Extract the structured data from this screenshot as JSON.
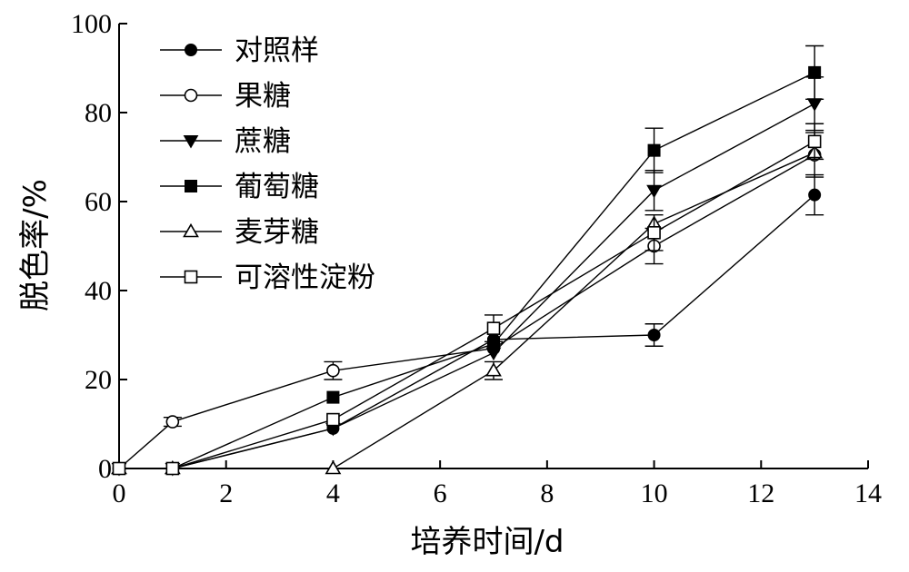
{
  "chart_data": {
    "type": "line",
    "xlabel": "培养时间/d",
    "ylabel": "脱色率/%",
    "xlim": [
      0,
      14
    ],
    "ylim": [
      0,
      100
    ],
    "x_ticks": [
      0,
      2,
      4,
      6,
      8,
      10,
      12,
      14
    ],
    "y_ticks": [
      0,
      20,
      40,
      60,
      80,
      100
    ],
    "x_tick_labels": [
      "0",
      "2",
      "4",
      "6",
      "8",
      "10",
      "12",
      "14"
    ],
    "y_tick_labels": [
      "0",
      "20",
      "40",
      "60",
      "80",
      "100"
    ],
    "grid": false,
    "legend_position": "top-left",
    "x": [
      0,
      1,
      4,
      7,
      10,
      13
    ],
    "series": [
      {
        "name": "对照样",
        "marker": "filled-circle",
        "values": [
          0,
          0,
          9,
          29,
          30,
          61.5
        ],
        "errors": [
          0,
          0,
          0,
          0,
          2.5,
          4.5
        ]
      },
      {
        "name": "果糖",
        "marker": "open-circle",
        "values": [
          0,
          10.5,
          22,
          27,
          50,
          70.5
        ],
        "errors": [
          0,
          1,
          2,
          0,
          4,
          5
        ]
      },
      {
        "name": "蔗糖",
        "marker": "filled-triangle-down",
        "values": [
          0,
          0,
          9,
          26,
          62.5,
          82
        ],
        "errors": [
          0,
          0,
          0,
          0,
          4.5,
          6
        ]
      },
      {
        "name": "葡萄糖",
        "marker": "filled-square",
        "values": [
          0,
          0,
          16,
          28,
          71.5,
          89
        ],
        "errors": [
          0,
          0,
          0,
          0,
          5,
          6
        ]
      },
      {
        "name": "麦芽糖",
        "marker": "open-triangle-up",
        "values": [
          0,
          0,
          0,
          22,
          55,
          71
        ],
        "errors": [
          0,
          0,
          0,
          2,
          0,
          0
        ]
      },
      {
        "name": "可溶性淀粉",
        "marker": "open-square",
        "values": [
          0,
          0,
          11,
          31.5,
          53,
          73.5
        ],
        "errors": [
          0,
          0,
          0,
          3,
          4,
          4
        ]
      }
    ]
  }
}
